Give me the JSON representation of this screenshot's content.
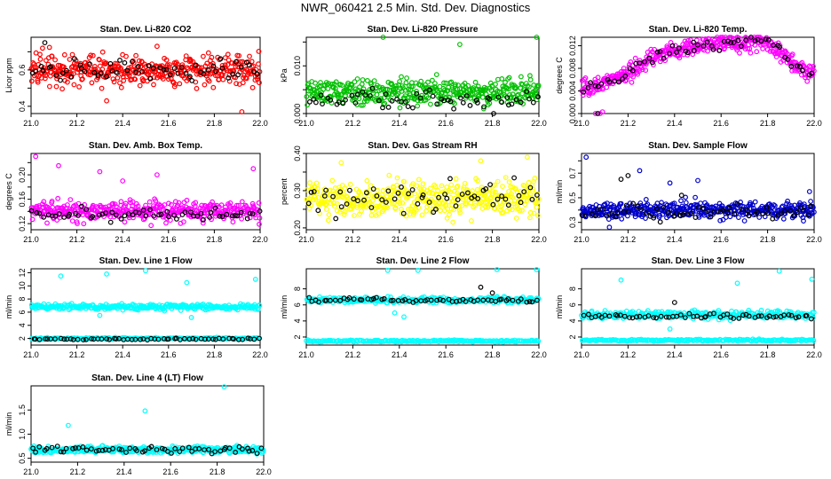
{
  "page_title": "NWR_060421  2.5 Min. Std. Dev. Diagnostics",
  "chart_data": [
    {
      "type": "scatter",
      "title": "Stan. Dev. Li-820 CO2",
      "ylabel": "Licor ppm",
      "xlim": [
        21.0,
        22.0
      ],
      "ylim": [
        0.36,
        0.78
      ],
      "xticks": [
        "21.0",
        "21.2",
        "21.4",
        "21.6",
        "21.8",
        "22.0"
      ],
      "yticks": [
        "0.4",
        "0.6"
      ],
      "ytick_values": [
        0.4,
        0.6
      ],
      "y_extra_ticks": [
        0.5,
        0.7
      ],
      "color": "#ff0000",
      "series": [
        {
          "color": "#ff0000",
          "x_range": [
            21.0,
            22.0
          ],
          "center": 0.6,
          "spread": 0.06,
          "count": 420,
          "outliers": [
            [
              21.33,
              0.43
            ],
            [
              21.92,
              0.37
            ],
            [
              21.05,
              0.72
            ],
            [
              21.55,
              0.73
            ]
          ]
        },
        {
          "color": "#000000",
          "x_range": [
            21.0,
            22.0
          ],
          "center": 0.6,
          "spread": 0.05,
          "count": 60,
          "outliers": [
            [
              21.06,
              0.75
            ]
          ]
        }
      ]
    },
    {
      "type": "scatter",
      "title": "Stan. Dev. Li-820 Pressure",
      "ylabel": "kPa",
      "xlim": [
        21.0,
        22.0
      ],
      "ylim": [
        0.0,
        0.016
      ],
      "xticks": [
        "21.0",
        "21.2",
        "21.4",
        "21.6",
        "21.8",
        "22.0"
      ],
      "yticks": [
        "0.000",
        "0.010"
      ],
      "ytick_values": [
        0.0,
        0.01
      ],
      "y_extra_ticks": [
        0.005,
        0.015
      ],
      "color": "#00c000",
      "series": [
        {
          "color": "#00c000",
          "x_range": [
            21.0,
            22.0
          ],
          "center": 0.0045,
          "spread": 0.0018,
          "count": 420,
          "outliers": [
            [
              21.33,
              0.016
            ],
            [
              21.66,
              0.0145
            ],
            [
              21.99,
              0.016
            ]
          ]
        },
        {
          "color": "#000000",
          "x_range": [
            21.0,
            22.0
          ],
          "center": 0.003,
          "spread": 0.0015,
          "count": 60,
          "outliers": []
        }
      ]
    },
    {
      "type": "scatter",
      "title": "Stan. Dev. Li-820 Temp.",
      "ylabel": "degrees C",
      "xlim": [
        21.0,
        22.0
      ],
      "ylim": [
        0.0,
        0.0135
      ],
      "xticks": [
        "21.0",
        "21.2",
        "21.4",
        "21.6",
        "21.8",
        "22.0"
      ],
      "yticks": [
        "0.000",
        "0.004",
        "0.008",
        "0.012"
      ],
      "ytick_values": [
        0.0,
        0.004,
        0.008,
        0.012
      ],
      "y_extra_ticks": [],
      "color": "#ff00ff",
      "trend": [
        [
          21.0,
          0.004
        ],
        [
          21.1,
          0.0055
        ],
        [
          21.2,
          0.007
        ],
        [
          21.3,
          0.01
        ],
        [
          21.45,
          0.0115
        ],
        [
          21.6,
          0.0125
        ],
        [
          21.8,
          0.0125
        ],
        [
          21.9,
          0.009
        ],
        [
          22.0,
          0.007
        ]
      ],
      "series": [
        {
          "color": "#ff00ff",
          "x_range": [
            21.0,
            22.0
          ],
          "center": 0.0,
          "spread": 0.0011,
          "count": 420,
          "outliers": [
            [
              21.06,
              0.0
            ],
            [
              21.08,
              0.0
            ],
            [
              21.09,
              0.0003
            ]
          ]
        },
        {
          "color": "#000000",
          "x_range": [
            21.0,
            22.0
          ],
          "center": 0.0,
          "spread": 0.0008,
          "count": 60,
          "outliers": [
            [
              21.07,
              0.0
            ]
          ]
        }
      ]
    },
    {
      "type": "scatter",
      "title": "Stan. Dev. Amb. Box Temp.",
      "ylabel": "degrees C",
      "xlim": [
        21.0,
        22.0
      ],
      "ylim": [
        0.11,
        0.235
      ],
      "xticks": [
        "21.0",
        "21.2",
        "21.4",
        "21.6",
        "21.8",
        "22.0"
      ],
      "yticks": [
        "0.12",
        "0.16",
        "0.20"
      ],
      "ytick_values": [
        0.12,
        0.16,
        0.2
      ],
      "y_extra_ticks": [
        0.14,
        0.18,
        0.22
      ],
      "color": "#ff00ff",
      "series": [
        {
          "color": "#ff00ff",
          "x_range": [
            21.0,
            22.0
          ],
          "center": 0.14,
          "spread": 0.011,
          "count": 420,
          "outliers": [
            [
              21.02,
              0.23
            ],
            [
              21.12,
              0.215
            ],
            [
              21.4,
              0.19
            ],
            [
              21.55,
              0.2
            ],
            [
              21.97,
              0.21
            ],
            [
              21.3,
              0.205
            ]
          ]
        },
        {
          "color": "#000000",
          "x_range": [
            21.0,
            22.0
          ],
          "center": 0.135,
          "spread": 0.008,
          "count": 60,
          "outliers": []
        }
      ]
    },
    {
      "type": "scatter",
      "title": "Stan. Dev. Gas Stream RH",
      "ylabel": "percent",
      "xlim": [
        21.0,
        22.0
      ],
      "ylim": [
        0.195,
        0.4
      ],
      "xticks": [
        "21.0",
        "21.2",
        "21.4",
        "21.6",
        "21.8",
        "22.0"
      ],
      "yticks": [
        "0.20",
        "0.30",
        "0.40"
      ],
      "ytick_values": [
        0.2,
        0.3,
        0.4
      ],
      "y_extra_ticks": [
        0.25,
        0.35
      ],
      "color": "#ffff00",
      "series": [
        {
          "color": "#ffff00",
          "x_range": [
            21.0,
            22.0
          ],
          "center": 0.28,
          "spread": 0.035,
          "count": 420,
          "outliers": [
            [
              21.15,
              0.375
            ],
            [
              21.95,
              0.39
            ],
            [
              21.75,
              0.38
            ]
          ]
        },
        {
          "color": "#000000",
          "x_range": [
            21.0,
            22.0
          ],
          "center": 0.28,
          "spread": 0.03,
          "count": 60,
          "outliers": []
        }
      ]
    },
    {
      "type": "scatter",
      "title": "Stan. Dev. Sample Flow",
      "ylabel": "ml/min",
      "xlim": [
        21.0,
        22.0
      ],
      "ylim": [
        0.24,
        0.86
      ],
      "xticks": [
        "21.0",
        "21.2",
        "21.4",
        "21.6",
        "21.8",
        "22.0"
      ],
      "yticks": [
        "0.3",
        "0.5",
        "0.7"
      ],
      "ytick_values": [
        0.3,
        0.5,
        0.7
      ],
      "y_extra_ticks": [
        0.4,
        0.6,
        0.8
      ],
      "color": "#0000cc",
      "series": [
        {
          "color": "#0000cc",
          "x_range": [
            21.0,
            22.0
          ],
          "center": 0.4,
          "spread": 0.05,
          "count": 420,
          "outliers": [
            [
              21.02,
              0.83
            ],
            [
              21.12,
              0.26
            ],
            [
              21.25,
              0.72
            ],
            [
              21.38,
              0.62
            ],
            [
              21.5,
              0.64
            ],
            [
              21.98,
              0.55
            ]
          ]
        },
        {
          "color": "#000000",
          "x_range": [
            21.0,
            22.0
          ],
          "center": 0.38,
          "spread": 0.05,
          "count": 60,
          "outliers": [
            [
              21.17,
              0.65
            ],
            [
              21.2,
              0.68
            ],
            [
              21.43,
              0.52
            ]
          ]
        }
      ]
    },
    {
      "type": "scatter",
      "title": "Stan. Dev. Line 1 Flow",
      "ylabel": "ml/min",
      "xlim": [
        21.0,
        22.0
      ],
      "ylim": [
        1.0,
        12.6
      ],
      "xticks": [
        "21.0",
        "21.2",
        "21.4",
        "21.6",
        "21.8",
        "22.0"
      ],
      "yticks": [
        "2",
        "4",
        "6",
        "8",
        "10",
        "12"
      ],
      "ytick_values": [
        2,
        4,
        6,
        8,
        10,
        12
      ],
      "y_extra_ticks": [],
      "color": "#00ffff",
      "series": [
        {
          "color": "#00ffff",
          "x_range": [
            21.0,
            22.0
          ],
          "center": 6.8,
          "spread": 0.3,
          "count": 300,
          "outliers": [
            [
              21.13,
              11.5
            ],
            [
              21.33,
              11.8
            ],
            [
              21.5,
              12.3
            ],
            [
              21.68,
              10.5
            ],
            [
              21.98,
              11.0
            ],
            [
              21.3,
              5.5
            ],
            [
              21.7,
              5.2
            ]
          ]
        },
        {
          "color": "#00ffff",
          "x_range": [
            21.0,
            22.0
          ],
          "center": 2.0,
          "spread": 0.1,
          "count": 200,
          "outliers": []
        },
        {
          "color": "#000000",
          "x_range": [
            21.0,
            22.0
          ],
          "center": 1.9,
          "spread": 0.1,
          "count": 60,
          "outliers": []
        }
      ]
    },
    {
      "type": "scatter",
      "title": "Stan. Dev. Line 2 Flow",
      "ylabel": "ml/min",
      "xlim": [
        21.0,
        22.0
      ],
      "ylim": [
        1.0,
        10.5
      ],
      "xticks": [
        "21.0",
        "21.2",
        "21.4",
        "21.6",
        "21.8",
        "22.0"
      ],
      "yticks": [
        "2",
        "4",
        "6",
        "8"
      ],
      "ytick_values": [
        2,
        4,
        6,
        8
      ],
      "y_extra_ticks": [],
      "color": "#00ffff",
      "series": [
        {
          "color": "#00ffff",
          "x_range": [
            21.0,
            22.0
          ],
          "center": 6.6,
          "spread": 0.25,
          "count": 300,
          "outliers": [
            [
              21.35,
              10.3
            ],
            [
              21.48,
              10.3
            ],
            [
              21.82,
              10.4
            ],
            [
              21.99,
              10.4
            ],
            [
              21.38,
              5.0
            ],
            [
              21.42,
              4.5
            ]
          ]
        },
        {
          "color": "#00ffff",
          "x_range": [
            21.0,
            22.0
          ],
          "center": 1.5,
          "spread": 0.08,
          "count": 200,
          "outliers": []
        },
        {
          "color": "#000000",
          "x_range": [
            21.0,
            22.0
          ],
          "center": 6.6,
          "spread": 0.2,
          "count": 60,
          "outliers": [
            [
              21.75,
              8.2
            ],
            [
              21.8,
              7.5
            ]
          ]
        }
      ]
    },
    {
      "type": "scatter",
      "title": "Stan. Dev. Line 3 Flow",
      "ylabel": "ml/min",
      "xlim": [
        21.0,
        22.0
      ],
      "ylim": [
        1.0,
        10.5
      ],
      "xticks": [
        "21.0",
        "21.2",
        "21.4",
        "21.6",
        "21.8",
        "22.0"
      ],
      "yticks": [
        "2",
        "4",
        "6",
        "8"
      ],
      "ytick_values": [
        2,
        4,
        6,
        8
      ],
      "y_extra_ticks": [],
      "color": "#00ffff",
      "series": [
        {
          "color": "#00ffff",
          "x_range": [
            21.0,
            22.0
          ],
          "center": 4.8,
          "spread": 0.35,
          "count": 300,
          "outliers": [
            [
              21.17,
              9.1
            ],
            [
              21.67,
              8.7
            ],
            [
              21.85,
              10.2
            ],
            [
              21.99,
              9.2
            ],
            [
              21.38,
              3.0
            ]
          ]
        },
        {
          "color": "#00ffff",
          "x_range": [
            21.0,
            22.0
          ],
          "center": 1.6,
          "spread": 0.08,
          "count": 200,
          "outliers": []
        },
        {
          "color": "#000000",
          "x_range": [
            21.0,
            22.0
          ],
          "center": 4.6,
          "spread": 0.25,
          "count": 60,
          "outliers": [
            [
              21.4,
              6.3
            ]
          ]
        }
      ]
    },
    {
      "type": "scatter",
      "title": "Stan. Dev. Line 4 (LT) Flow",
      "ylabel": "ml/min",
      "xlim": [
        21.0,
        22.0
      ],
      "ylim": [
        0.42,
        2.0
      ],
      "xticks": [
        "21.0",
        "21.2",
        "21.4",
        "21.6",
        "21.8",
        "22.0"
      ],
      "yticks": [
        "0.5",
        "1.0",
        "1.5"
      ],
      "ytick_values": [
        0.5,
        1.0,
        1.5
      ],
      "y_extra_ticks": [],
      "color": "#00ffff",
      "series": [
        {
          "color": "#00ffff",
          "x_range": [
            21.0,
            22.0
          ],
          "center": 0.68,
          "spread": 0.05,
          "count": 420,
          "outliers": [
            [
              21.16,
              1.18
            ],
            [
              21.49,
              1.48
            ],
            [
              21.83,
              1.98
            ]
          ]
        },
        {
          "color": "#000000",
          "x_range": [
            21.0,
            22.0
          ],
          "center": 0.68,
          "spread": 0.05,
          "count": 60,
          "outliers": []
        }
      ]
    }
  ]
}
